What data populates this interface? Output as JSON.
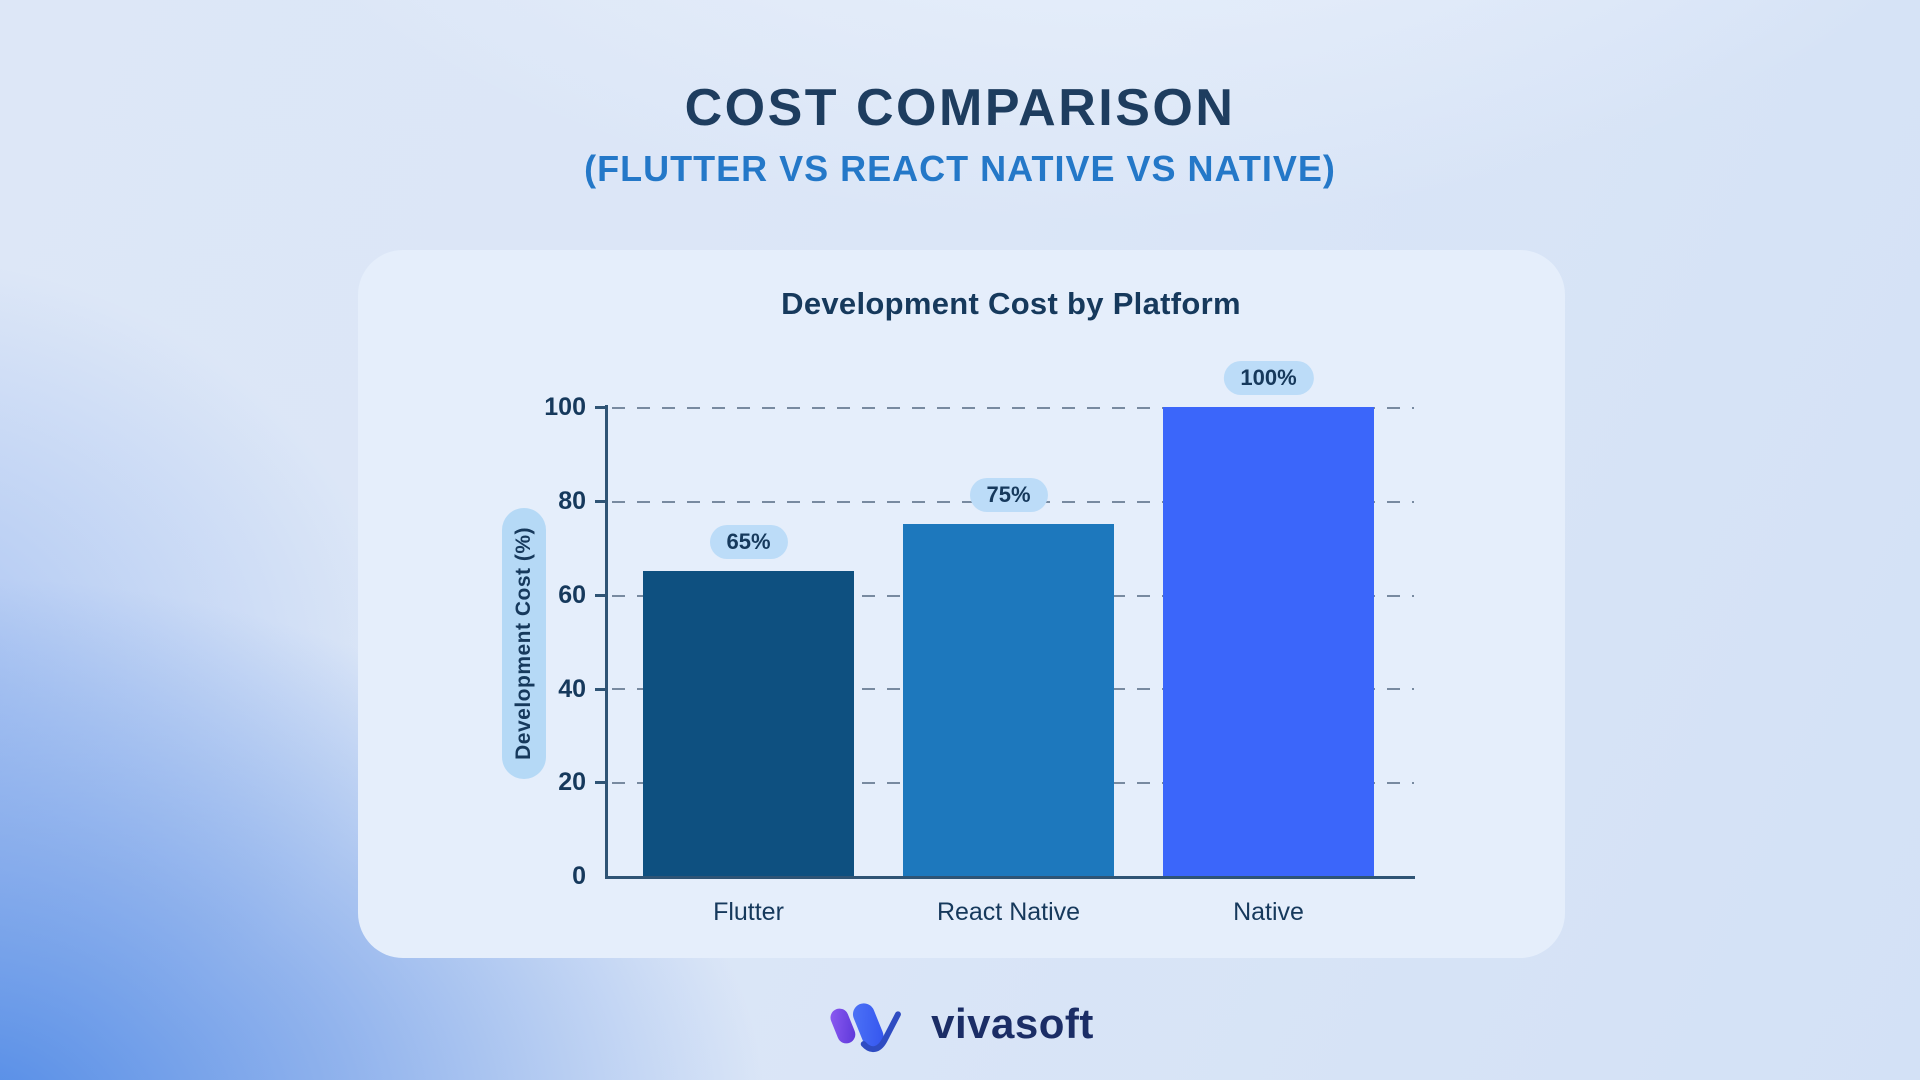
{
  "header": {
    "title": "COST COMPARISON",
    "subtitle": "(FLUTTER VS REACT NATIVE VS NATIVE)"
  },
  "chart_data": {
    "type": "bar",
    "title": "Development Cost by Platform",
    "xlabel": "",
    "ylabel": "Development Cost (%)",
    "categories": [
      "Flutter",
      "React Native",
      "Native"
    ],
    "values": [
      65,
      75,
      100
    ],
    "value_labels": [
      "65%",
      "75%",
      "100%"
    ],
    "yticks": [
      "100",
      "80",
      "60",
      "40",
      "20",
      "0"
    ],
    "ylim": [
      0,
      100
    ],
    "grid": "horizontal-dashed",
    "legend_position": "none",
    "bar_colors": [
      "#0e5080",
      "#1d78bd",
      "#3b66fa"
    ]
  },
  "footer": {
    "brand": "vivasoft"
  },
  "colors": {
    "page_title": "#1e3d5f",
    "page_subtitle": "#2478c8",
    "card_background": "#e5eefb",
    "axis_text": "#16395c",
    "value_pill_background": "#bcdcf8",
    "ylabel_pill_background": "#b5d9f6",
    "background_accent_blue": "#4f89e6",
    "logo_text": "#1b2d66",
    "logo_purple": "#7a4ee8",
    "logo_blue": "#3c5ff2"
  },
  "icons": {
    "logo_mark": "vivasoft-w-check-logo-mark"
  }
}
